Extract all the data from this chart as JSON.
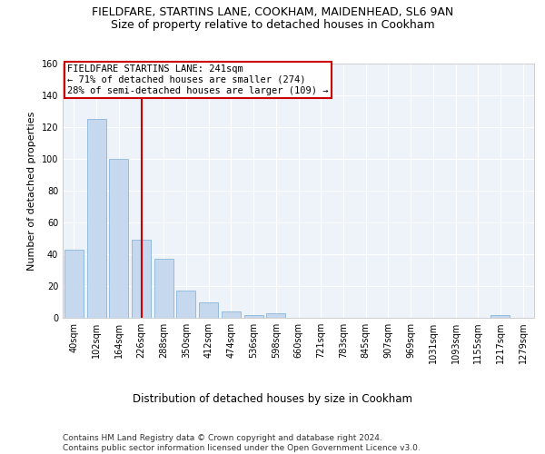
{
  "title1": "FIELDFARE, STARTINS LANE, COOKHAM, MAIDENHEAD, SL6 9AN",
  "title2": "Size of property relative to detached houses in Cookham",
  "xlabel": "Distribution of detached houses by size in Cookham",
  "ylabel": "Number of detached properties",
  "bar_color": "#c5d8ee",
  "bar_edge_color": "#7aadd4",
  "background_color": "#eef2f9",
  "grid_color": "#ffffff",
  "annotation_box_color": "#cc0000",
  "vline_color": "#cc0000",
  "categories": [
    "40sqm",
    "102sqm",
    "164sqm",
    "226sqm",
    "288sqm",
    "350sqm",
    "412sqm",
    "474sqm",
    "536sqm",
    "598sqm",
    "660sqm",
    "721sqm",
    "783sqm",
    "845sqm",
    "907sqm",
    "969sqm",
    "1031sqm",
    "1093sqm",
    "1155sqm",
    "1217sqm",
    "1279sqm"
  ],
  "values": [
    43,
    125,
    100,
    49,
    37,
    17,
    10,
    4,
    2,
    3,
    0,
    0,
    0,
    0,
    0,
    0,
    0,
    0,
    0,
    2,
    0
  ],
  "ylim": [
    0,
    160
  ],
  "yticks": [
    0,
    20,
    40,
    60,
    80,
    100,
    120,
    140,
    160
  ],
  "vline_x": 3,
  "annotation_text": "FIELDFARE STARTINS LANE: 241sqm\n← 71% of detached houses are smaller (274)\n28% of semi-detached houses are larger (109) →",
  "footer_text": "Contains HM Land Registry data © Crown copyright and database right 2024.\nContains public sector information licensed under the Open Government Licence v3.0.",
  "title1_fontsize": 9,
  "title2_fontsize": 9,
  "xlabel_fontsize": 8.5,
  "ylabel_fontsize": 8,
  "tick_fontsize": 7,
  "annotation_fontsize": 7.5,
  "footer_fontsize": 6.5
}
